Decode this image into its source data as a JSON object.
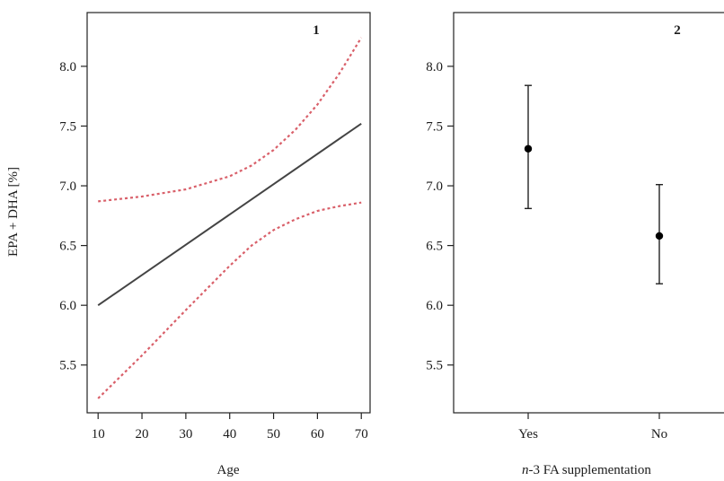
{
  "colors": {
    "fit_line": "#444444",
    "ci_line": "#d9606a",
    "axis": "#222222",
    "points": "#000000"
  },
  "chart_data": [
    {
      "panel_label": "1",
      "type": "line",
      "xlabel": "Age",
      "ylabel": "EPA + DHA [%]",
      "xlim": [
        7.5,
        72
      ],
      "ylim": [
        5.1,
        8.45
      ],
      "xticks": [
        "10",
        "20",
        "30",
        "40",
        "50",
        "60",
        "70"
      ],
      "yticks": [
        "5.5",
        "6.0",
        "6.5",
        "7.0",
        "7.5",
        "8.0"
      ],
      "series": [
        {
          "role": "fit",
          "style": "solid",
          "x": [
            10,
            70
          ],
          "y": [
            6.0,
            7.52
          ]
        },
        {
          "role": "upper-ci",
          "style": "dashed",
          "x": [
            10,
            20,
            30,
            40,
            45,
            50,
            55,
            60,
            65,
            70
          ],
          "y": [
            6.87,
            6.91,
            6.97,
            7.08,
            7.17,
            7.3,
            7.47,
            7.68,
            7.94,
            8.24
          ]
        },
        {
          "role": "lower-ci",
          "style": "dashed",
          "x": [
            10,
            20,
            30,
            40,
            45,
            50,
            55,
            60,
            65,
            70
          ],
          "y": [
            5.22,
            5.58,
            5.96,
            6.33,
            6.5,
            6.63,
            6.72,
            6.79,
            6.83,
            6.86
          ]
        }
      ]
    },
    {
      "panel_label": "2",
      "type": "scatter",
      "xlabel_italic": "n",
      "xlabel_rest": "-3 FA supplementation",
      "ylim": [
        5.1,
        8.45
      ],
      "yticks": [
        "5.5",
        "6.0",
        "6.5",
        "7.0",
        "7.5",
        "8.0"
      ],
      "categories": [
        "Yes",
        "No"
      ],
      "values": [
        7.31,
        6.58
      ],
      "error_low": [
        6.81,
        6.18
      ],
      "error_high": [
        7.84,
        7.01
      ]
    }
  ]
}
